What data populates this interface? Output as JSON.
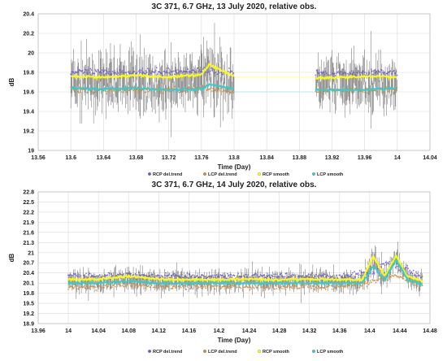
{
  "chart_data": [
    {
      "type": "scatter",
      "title": "3C 371, 6.7 GHz, 13 July 2020, relative obs.",
      "xlabel": "Time (Day)",
      "ylabel": "dB",
      "xlim": [
        13.56,
        14.04
      ],
      "ylim": [
        19.0,
        20.4
      ],
      "x_ticks": [
        "13.56",
        "13.6",
        "13.64",
        "13.68",
        "13.72",
        "13.76",
        "13.8",
        "13.84",
        "13.88",
        "13.92",
        "13.96",
        "14",
        "14.04"
      ],
      "y_ticks": [
        "19",
        "19.2",
        "19.4",
        "19.6",
        "19.8",
        "20",
        "20.2",
        "20.4"
      ],
      "grid": true,
      "legend_position": "bottom",
      "observation_windows": [
        [
          13.6,
          13.8
        ],
        [
          13.9,
          14.0
        ]
      ],
      "series": [
        {
          "name": "RCP del.trend",
          "color": "#6a5acd",
          "x": [
            13.6,
            13.64,
            13.68,
            13.72,
            13.76,
            13.8,
            13.9,
            13.94,
            13.98,
            14.0
          ],
          "y": [
            19.8,
            19.8,
            19.8,
            19.8,
            19.82,
            19.8,
            19.79,
            19.79,
            19.8,
            19.8
          ]
        },
        {
          "name": "LCP del.trend",
          "color": "#d08a3c",
          "x": [
            13.6,
            13.64,
            13.68,
            13.72,
            13.76,
            13.8,
            13.9,
            13.94,
            13.98,
            14.0
          ],
          "y": [
            19.62,
            19.62,
            19.62,
            19.62,
            19.63,
            19.62,
            19.61,
            19.61,
            19.62,
            19.62
          ]
        },
        {
          "name": "RCP smooth",
          "color": "#ffff00",
          "x": [
            13.6,
            13.64,
            13.68,
            13.72,
            13.76,
            13.77,
            13.8,
            13.9,
            13.94,
            13.98,
            14.0
          ],
          "y": [
            19.76,
            19.75,
            19.77,
            19.75,
            19.78,
            19.88,
            19.76,
            19.74,
            19.75,
            19.76,
            19.75
          ]
        },
        {
          "name": "LCP smooth",
          "color": "#33cccc",
          "x": [
            13.6,
            13.64,
            13.68,
            13.72,
            13.76,
            13.77,
            13.8,
            13.9,
            13.94,
            13.98,
            14.0
          ],
          "y": [
            19.64,
            19.63,
            19.64,
            19.62,
            19.63,
            19.68,
            19.63,
            19.62,
            19.62,
            19.63,
            19.64
          ]
        }
      ]
    },
    {
      "type": "scatter",
      "title": "3C 371, 6.7 GHz, 14 July 2020, relative obs.",
      "xlabel": "Time (Day)",
      "ylabel": "dB",
      "xlim": [
        13.96,
        14.48
      ],
      "ylim": [
        18.9,
        22.8
      ],
      "x_ticks": [
        "13.96",
        "14",
        "14.04",
        "14.08",
        "14.12",
        "14.16",
        "14.2",
        "14.24",
        "14.28",
        "14.32",
        "14.36",
        "14.4",
        "14.44",
        "14.48"
      ],
      "y_ticks": [
        "18.9",
        "19.2",
        "19.5",
        "19.8",
        "20.1",
        "20.4",
        "20.7",
        "21",
        "21.3",
        "21.6",
        "21.9",
        "22.2",
        "22.5",
        "22.8"
      ],
      "grid": true,
      "legend_position": "bottom",
      "observation_windows": [
        [
          14.0,
          14.47
        ]
      ],
      "series": [
        {
          "name": "RCP del.trend",
          "color": "#6a5acd",
          "x": [
            14.0,
            14.04,
            14.08,
            14.12,
            14.16,
            14.2,
            14.24,
            14.28,
            14.32,
            14.36,
            14.4,
            14.42,
            14.44,
            14.47
          ],
          "y": [
            20.3,
            20.3,
            20.35,
            20.3,
            20.3,
            20.3,
            20.3,
            20.3,
            20.3,
            20.3,
            20.4,
            20.7,
            20.6,
            20.3
          ]
        },
        {
          "name": "LCP del.trend",
          "color": "#d08a3c",
          "x": [
            14.0,
            14.04,
            14.08,
            14.12,
            14.16,
            14.2,
            14.24,
            14.28,
            14.32,
            14.36,
            14.4,
            14.42,
            14.44,
            14.47
          ],
          "y": [
            20.0,
            20.0,
            20.05,
            20.0,
            20.0,
            20.0,
            20.0,
            20.0,
            20.0,
            20.0,
            20.1,
            20.3,
            20.3,
            20.0
          ]
        },
        {
          "name": "RCP smooth",
          "color": "#ffff00",
          "x": [
            14.0,
            14.04,
            14.08,
            14.12,
            14.16,
            14.2,
            14.24,
            14.28,
            14.32,
            14.36,
            14.39,
            14.405,
            14.42,
            14.435,
            14.45,
            14.47
          ],
          "y": [
            20.2,
            20.22,
            20.3,
            20.22,
            20.2,
            20.2,
            20.22,
            20.2,
            20.22,
            20.2,
            20.2,
            20.9,
            20.3,
            20.9,
            20.3,
            20.15
          ]
        },
        {
          "name": "LCP smooth",
          "color": "#33cccc",
          "x": [
            14.0,
            14.04,
            14.08,
            14.12,
            14.16,
            14.2,
            14.24,
            14.28,
            14.32,
            14.36,
            14.39,
            14.405,
            14.42,
            14.435,
            14.45,
            14.47
          ],
          "y": [
            20.1,
            20.1,
            20.15,
            20.1,
            20.1,
            20.1,
            20.1,
            20.1,
            20.1,
            20.1,
            20.1,
            20.6,
            20.2,
            20.8,
            20.2,
            20.05
          ]
        }
      ]
    }
  ]
}
